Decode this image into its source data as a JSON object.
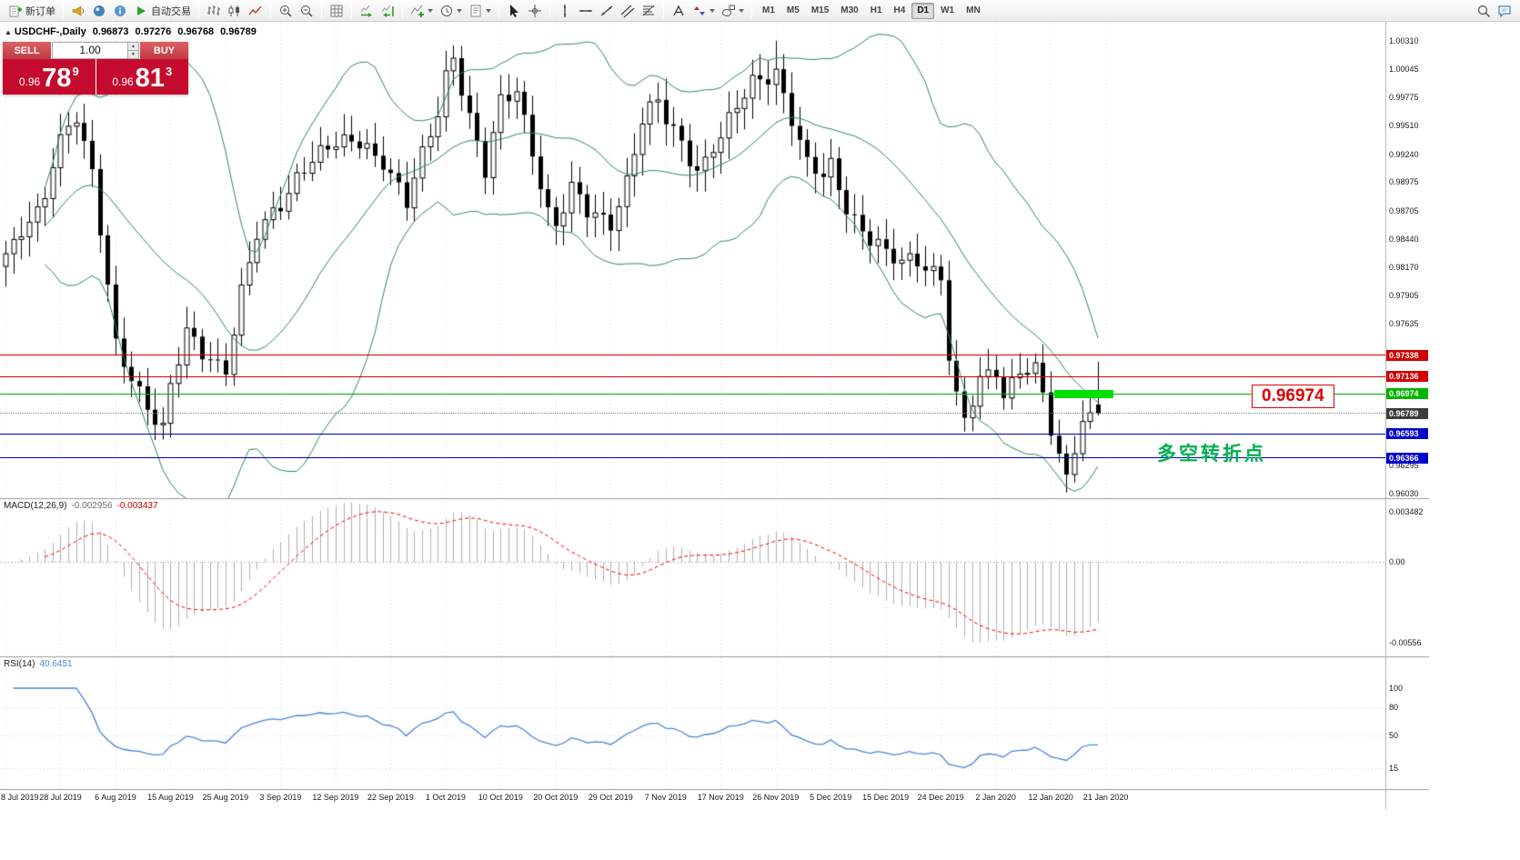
{
  "toolbar": {
    "timeframes": [
      "M1",
      "M5",
      "M15",
      "M30",
      "H1",
      "H4",
      "D1",
      "W1",
      "MN"
    ],
    "active_timeframe": "D1",
    "items": [
      {
        "type": "labeled",
        "name": "new-order",
        "label": "新订单"
      },
      {
        "type": "sep"
      },
      {
        "type": "icon",
        "name": "horn"
      },
      {
        "type": "icon",
        "name": "community"
      },
      {
        "type": "icon",
        "name": "news"
      },
      {
        "type": "labeled",
        "name": "autotrade",
        "label": "自动交易"
      },
      {
        "type": "sep"
      },
      {
        "type": "icon",
        "name": "bar-chart"
      },
      {
        "type": "icon",
        "name": "candle-chart"
      },
      {
        "type": "icon",
        "name": "line-chart"
      },
      {
        "type": "sep"
      },
      {
        "type": "icon",
        "name": "zoom-in"
      },
      {
        "type": "icon",
        "name": "zoom-out"
      },
      {
        "type": "sep"
      },
      {
        "type": "icon",
        "name": "grid"
      },
      {
        "type": "sep"
      },
      {
        "type": "icon",
        "name": "auto-scroll"
      },
      {
        "type": "icon",
        "name": "chart-shift"
      },
      {
        "type": "sep"
      },
      {
        "type": "icon",
        "name": "indicators",
        "dropdown": true
      },
      {
        "type": "icon",
        "name": "periods",
        "dropdown": true
      },
      {
        "type": "icon",
        "name": "templates",
        "dropdown": true
      },
      {
        "type": "sep"
      },
      {
        "type": "icon",
        "name": "cursor"
      },
      {
        "type": "icon",
        "name": "crosshair"
      },
      {
        "type": "sep"
      },
      {
        "type": "icon",
        "name": "vertical-line"
      },
      {
        "type": "icon",
        "name": "horizontal-line"
      },
      {
        "type": "icon",
        "name": "trendline"
      },
      {
        "type": "icon",
        "name": "channel"
      },
      {
        "type": "icon",
        "name": "fibonacci"
      },
      {
        "type": "sep"
      },
      {
        "type": "icon",
        "name": "text"
      },
      {
        "type": "icon",
        "name": "arrows",
        "dropdown": true
      },
      {
        "type": "icon",
        "name": "shapes",
        "dropdown": true
      },
      {
        "type": "sep"
      },
      {
        "type": "timeframes"
      },
      {
        "type": "spacer"
      },
      {
        "type": "icon",
        "name": "search"
      },
      {
        "type": "icon",
        "name": "chat"
      }
    ]
  },
  "chart": {
    "symbol_title": "USDCHF-,Daily",
    "ohlc": {
      "open": "0.96873",
      "high": "0.97276",
      "low": "0.96768",
      "close": "0.96789"
    },
    "trade_panel": {
      "sell_label": "SELL",
      "buy_label": "BUY",
      "volume": "1.00",
      "sell_price_prefix": "0.96",
      "sell_price_main": "78",
      "sell_price_sup": "9",
      "buy_price_prefix": "0.96",
      "buy_price_main": "81",
      "buy_price_sup": "3"
    },
    "annotations": {
      "price_callout": "0.96974",
      "turning_point": "多空转折点"
    }
  },
  "chart_data": {
    "type": "candlestick",
    "symbol": "USDCHF-",
    "timeframe": "Daily",
    "bar_count": 140,
    "price_range": {
      "top": 1.0031,
      "bottom": 0.9603
    },
    "price_scale_ticks": [
      "1.00310",
      "1.00045",
      "0.99775",
      "0.99510",
      "0.99240",
      "0.98975",
      "0.98705",
      "0.98440",
      "0.98170",
      "0.97905",
      "0.97635",
      "0.96295",
      "0.96030"
    ],
    "levels": [
      {
        "price": 0.97338,
        "label": "0.97338",
        "color": "#d20000",
        "style": "solid",
        "badge_color": "#d20000"
      },
      {
        "price": 0.97136,
        "label": "0.97136",
        "color": "#d20000",
        "style": "solid",
        "badge_color": "#d20000"
      },
      {
        "price": 0.96974,
        "label": "0.96974",
        "color": "#00b400",
        "style": "solid",
        "badge_color": "#00b400"
      },
      {
        "price": 0.96789,
        "label": "0.96789",
        "color": "#808080",
        "style": "dotted",
        "badge_color": "#3c3c3c"
      },
      {
        "price": 0.96593,
        "label": "0.96593",
        "color": "#0000cc",
        "style": "solid",
        "badge_color": "#0000cc"
      },
      {
        "price": 0.96366,
        "label": "0.96366",
        "color": "#0000cc",
        "style": "solid",
        "badge_color": "#0000cc"
      }
    ],
    "highlight": {
      "price": 0.96974,
      "from_bar": 133.5,
      "to_bar": 141,
      "color": "#00e000"
    },
    "x_labels": [
      "8 Jul 2019",
      "28 Jul 2019",
      "6 Aug 2019",
      "15 Aug 2019",
      "25 Aug 2019",
      "3 Sep 2019",
      "12 Sep 2019",
      "22 Sep 2019",
      "1 Oct 2019",
      "10 Oct 2019",
      "20 Oct 2019",
      "29 Oct 2019",
      "7 Nov 2019",
      "17 Nov 2019",
      "26 Nov 2019",
      "5 Dec 2019",
      "15 Dec 2019",
      "24 Dec 2019",
      "2 Jan 2020",
      "12 Jan 2020",
      "21 Jan 2020"
    ],
    "anchors": [
      [
        0,
        0.9825
      ],
      [
        4,
        0.987
      ],
      [
        7,
        0.994
      ],
      [
        9,
        0.9958
      ],
      [
        11,
        0.99
      ],
      [
        13,
        0.98
      ],
      [
        14,
        0.9745
      ],
      [
        16,
        0.9718
      ],
      [
        18,
        0.9685
      ],
      [
        20,
        0.966
      ],
      [
        21,
        0.97
      ],
      [
        23,
        0.9755
      ],
      [
        25,
        0.974
      ],
      [
        28,
        0.9722
      ],
      [
        30,
        0.979
      ],
      [
        32,
        0.9845
      ],
      [
        35,
        0.988
      ],
      [
        38,
        0.9915
      ],
      [
        42,
        0.993
      ],
      [
        45,
        0.9938
      ],
      [
        48,
        0.992
      ],
      [
        49,
        0.9905
      ],
      [
        51,
        0.9875
      ],
      [
        53,
        0.992
      ],
      [
        55,
        0.9965
      ],
      [
        56,
        1.0
      ],
      [
        57,
        1.002
      ],
      [
        59,
        0.996
      ],
      [
        61,
        0.9905
      ],
      [
        63,
        0.997
      ],
      [
        65,
        0.9985
      ],
      [
        67,
        0.993
      ],
      [
        69,
        0.987
      ],
      [
        70,
        0.9856
      ],
      [
        72,
        0.9888
      ],
      [
        74,
        0.9868
      ],
      [
        77,
        0.9862
      ],
      [
        79,
        0.99
      ],
      [
        81,
        0.9955
      ],
      [
        83,
        0.997
      ],
      [
        84,
        0.9955
      ],
      [
        86,
        0.9935
      ],
      [
        88,
        0.9912
      ],
      [
        91,
        0.994
      ],
      [
        93,
        0.9965
      ],
      [
        95,
        0.999
      ],
      [
        97,
        1.0
      ],
      [
        98,
        1.0005
      ],
      [
        100,
        0.996
      ],
      [
        102,
        0.9912
      ],
      [
        104,
        0.99
      ],
      [
        105,
        0.991
      ],
      [
        107,
        0.9875
      ],
      [
        109,
        0.9855
      ],
      [
        111,
        0.984
      ],
      [
        112,
        0.9828
      ],
      [
        114,
        0.9818
      ],
      [
        116,
        0.9822
      ],
      [
        118,
        0.9815
      ],
      [
        119,
        0.9812
      ],
      [
        120,
        0.9738
      ],
      [
        121,
        0.9695
      ],
      [
        122,
        0.9672
      ],
      [
        124,
        0.9705
      ],
      [
        126,
        0.9718
      ],
      [
        127,
        0.9694
      ],
      [
        129,
        0.9726
      ],
      [
        131,
        0.9722
      ],
      [
        132,
        0.97
      ],
      [
        133,
        0.966
      ],
      [
        134,
        0.963
      ],
      [
        135,
        0.9615
      ],
      [
        136,
        0.9645
      ],
      [
        137,
        0.9668
      ],
      [
        138,
        0.9678
      ],
      [
        139,
        0.96789
      ]
    ],
    "wick_overrides": [
      {
        "i": 98,
        "high": 1.0031
      },
      {
        "i": 135,
        "low": 0.9604
      }
    ],
    "last_candle": {
      "open": 0.96873,
      "high": 0.97276,
      "low": 0.96768,
      "close": 0.96789
    },
    "bollinger": {
      "period": 20,
      "deviation": 2,
      "color": "#2e8b57"
    },
    "macd": {
      "label": "MACD(12,26,9)",
      "value_main": "-0.002956",
      "value_signal": "-0.003437",
      "scale": [
        "0.003482",
        "0.00",
        "-0.00556"
      ],
      "histogram_color": "#b0b0b0",
      "signal_color": "#ff0000"
    },
    "rsi": {
      "label": "RSI(14)",
      "value": "40.6451",
      "scale": [
        "100",
        "80",
        "50",
        "15"
      ],
      "color": "#4a86d8"
    }
  }
}
